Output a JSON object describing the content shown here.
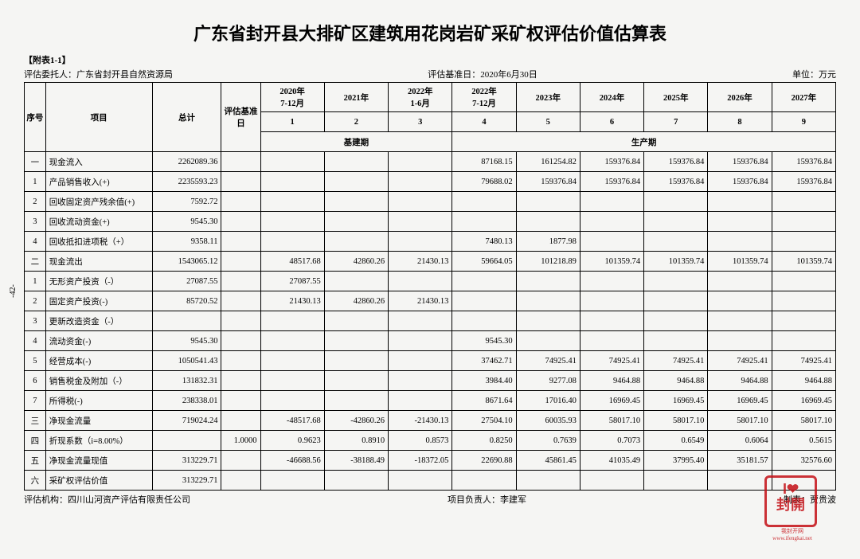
{
  "title": "广东省封开县大排矿区建筑用花岗岩矿采矿权评估价值估算表",
  "attach": "【附表1-1】",
  "meta": {
    "client_label": "评估委托人：",
    "client": "广东省封开县自然资源局",
    "base_date_label": "评估基准日：",
    "base_date": "2020年6月30日",
    "unit_label": "单位：万元"
  },
  "headers": {
    "seq": "序号",
    "item": "项目",
    "total": "总计",
    "base_day": "评估基准日",
    "periods": [
      "2020年\n7-12月",
      "2021年",
      "2022年\n1-6月",
      "2022年\n7-12月",
      "2023年",
      "2024年",
      "2025年",
      "2026年",
      "2027年"
    ],
    "period_nums": [
      "1",
      "2",
      "3",
      "4",
      "5",
      "6",
      "7",
      "8",
      "9"
    ],
    "phase1": "基建期",
    "phase2": "生产期"
  },
  "rows": [
    {
      "n": "一",
      "label": "现金流入",
      "total": "2262089.36",
      "v": [
        "",
        "",
        "",
        "87168.15",
        "161254.82",
        "159376.84",
        "159376.84",
        "159376.84",
        "159376.84"
      ]
    },
    {
      "n": "1",
      "label": "产品销售收入(+)",
      "total": "2235593.23",
      "v": [
        "",
        "",
        "",
        "79688.02",
        "159376.84",
        "159376.84",
        "159376.84",
        "159376.84",
        "159376.84"
      ]
    },
    {
      "n": "2",
      "label": "回收固定资产残余值(+)",
      "total": "7592.72",
      "v": [
        "",
        "",
        "",
        "",
        "",
        "",
        "",
        "",
        ""
      ]
    },
    {
      "n": "3",
      "label": "回收流动资金(+)",
      "total": "9545.30",
      "v": [
        "",
        "",
        "",
        "",
        "",
        "",
        "",
        "",
        ""
      ]
    },
    {
      "n": "4",
      "label": "回收抵扣进项税（+）",
      "total": "9358.11",
      "v": [
        "",
        "",
        "",
        "7480.13",
        "1877.98",
        "",
        "",
        "",
        ""
      ]
    },
    {
      "n": "二",
      "label": "现金流出",
      "total": "1543065.12",
      "v": [
        "48517.68",
        "42860.26",
        "21430.13",
        "59664.05",
        "101218.89",
        "101359.74",
        "101359.74",
        "101359.74",
        "101359.74"
      ]
    },
    {
      "n": "1",
      "label": "无形资产投资（-）",
      "total": "27087.55",
      "v": [
        "27087.55",
        "",
        "",
        "",
        "",
        "",
        "",
        "",
        ""
      ]
    },
    {
      "n": "2",
      "label": "固定资产投资(-)",
      "total": "85720.52",
      "v": [
        "21430.13",
        "42860.26",
        "21430.13",
        "",
        "",
        "",
        "",
        "",
        ""
      ]
    },
    {
      "n": "3",
      "label": "更新改造资金（-）",
      "total": "",
      "v": [
        "",
        "",
        "",
        "",
        "",
        "",
        "",
        "",
        ""
      ]
    },
    {
      "n": "4",
      "label": "流动资金(-)",
      "total": "9545.30",
      "v": [
        "",
        "",
        "",
        "9545.30",
        "",
        "",
        "",
        "",
        ""
      ]
    },
    {
      "n": "5",
      "label": "经营成本(-)",
      "total": "1050541.43",
      "v": [
        "",
        "",
        "",
        "37462.71",
        "74925.41",
        "74925.41",
        "74925.41",
        "74925.41",
        "74925.41"
      ]
    },
    {
      "n": "6",
      "label": "销售税金及附加（-）",
      "total": "131832.31",
      "v": [
        "",
        "",
        "",
        "3984.40",
        "9277.08",
        "9464.88",
        "9464.88",
        "9464.88",
        "9464.88"
      ]
    },
    {
      "n": "7",
      "label": "所得税(-)",
      "total": "238338.01",
      "v": [
        "",
        "",
        "",
        "8671.64",
        "17016.40",
        "16969.45",
        "16969.45",
        "16969.45",
        "16969.45"
      ]
    },
    {
      "n": "三",
      "label": "净现金流量",
      "total": "719024.24",
      "v": [
        "-48517.68",
        "-42860.26",
        "-21430.13",
        "27504.10",
        "60035.93",
        "58017.10",
        "58017.10",
        "58017.10",
        "58017.10"
      ]
    },
    {
      "n": "四",
      "label": "折现系数（i=8.00%）",
      "total": "",
      "base": "1.0000",
      "v": [
        "0.9623",
        "0.8910",
        "0.8573",
        "0.8250",
        "0.7639",
        "0.7073",
        "0.6549",
        "0.6064",
        "0.5615"
      ]
    },
    {
      "n": "五",
      "label": "净现金流量现值",
      "total": "313229.71",
      "v": [
        "-46688.56",
        "-38188.49",
        "-18372.05",
        "22690.88",
        "45861.45",
        "41035.49",
        "37995.40",
        "35181.57",
        "32576.60"
      ]
    },
    {
      "n": "六",
      "label": "采矿权评估价值",
      "total": "313229.71",
      "v": [
        "",
        "",
        "",
        "",
        "",
        "",
        "",
        "",
        ""
      ]
    }
  ],
  "footer": {
    "org_label": "评估机构：",
    "org": "四川山河资产评估有限责任公司",
    "pm_label": "项目负责人：",
    "pm": "李建军",
    "tab_label": "制表：",
    "tab": "贾贵波"
  },
  "side": "-42-",
  "stamp": {
    "line1": "I❤",
    "line2": "封開",
    "sub": "我封开网 www.ifengkai.net"
  }
}
